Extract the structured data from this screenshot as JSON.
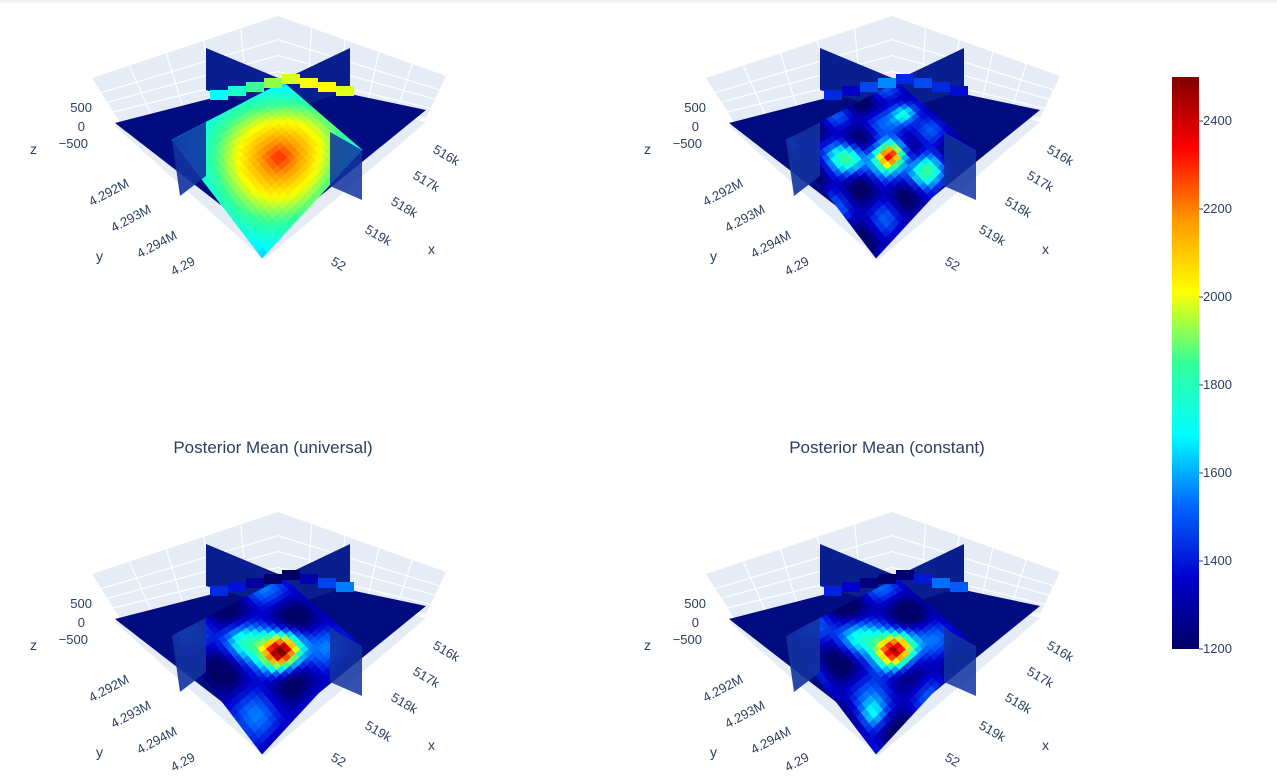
{
  "chart_data": [
    {
      "type": "heatmap",
      "title": "",
      "axis_titles": {
        "x": "x",
        "y": "y",
        "z": "z"
      },
      "x_ticks": [
        "516k",
        "517k",
        "518k",
        "519k",
        "52"
      ],
      "y_ticks": [
        "4.292M",
        "4.293M",
        "4.294M",
        "4.29"
      ],
      "z_ticks": [
        "500",
        "0",
        "−500"
      ],
      "field": "single broad radial high centered on the slice intersection",
      "hot_spot": {
        "x": 518500,
        "y": 4293200,
        "value": 2250
      }
    },
    {
      "type": "heatmap",
      "title": "",
      "axis_titles": {
        "x": "x",
        "y": "y",
        "z": "z"
      },
      "x_ticks": [
        "516k",
        "517k",
        "518k",
        "519k",
        "52"
      ],
      "y_ticks": [
        "4.292M",
        "4.293M",
        "4.294M",
        "4.29"
      ],
      "z_ticks": [
        "500",
        "0",
        "−500"
      ],
      "field": "heterogeneous, strong high near center",
      "hot_spot": {
        "x": 518400,
        "y": 4293300,
        "value": 2400
      }
    },
    {
      "type": "heatmap",
      "title": "Posterior Mean (universal)",
      "axis_titles": {
        "x": "x",
        "y": "y",
        "z": "z"
      },
      "x_ticks": [
        "516k",
        "517k",
        "518k",
        "519k",
        "52"
      ],
      "y_ticks": [
        "4.292M",
        "4.293M",
        "4.294M",
        "4.29"
      ],
      "z_ticks": [
        "500",
        "0",
        "−500"
      ],
      "field": "smoothed high near center",
      "hot_spot": {
        "x": 518400,
        "y": 4293300,
        "value": 2450
      }
    },
    {
      "type": "heatmap",
      "title": "Posterior Mean (constant)",
      "axis_titles": {
        "x": "x",
        "y": "y",
        "z": "z"
      },
      "x_ticks": [
        "516k",
        "517k",
        "518k",
        "519k",
        "52"
      ],
      "y_ticks": [
        "4.292M",
        "4.293M",
        "4.294M",
        "4.29"
      ],
      "z_ticks": [
        "500",
        "0",
        "−500"
      ],
      "field": "smoothed high near center",
      "hot_spot": {
        "x": 518400,
        "y": 4293300,
        "value": 2450
      }
    }
  ],
  "colorbar": {
    "min": 1200,
    "max": 2500,
    "ticks": [
      "2400",
      "2200",
      "2000",
      "1800",
      "1600",
      "1400",
      "1200"
    ],
    "colorscale": [
      "#000066",
      "#0000cc",
      "#0066ff",
      "#00ffff",
      "#33ff99",
      "#ffff00",
      "#ff9900",
      "#ff0000",
      "#800000"
    ]
  }
}
